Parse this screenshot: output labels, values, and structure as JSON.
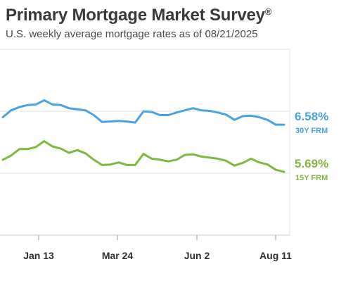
{
  "header": {
    "title": "Primary Mortgage Market Survey",
    "title_mark": "®",
    "subtitle": "U.S. weekly average mortgage rates as of 08/21/2025"
  },
  "colors": {
    "frm30": "#4aa3df",
    "frm15": "#7fb83f",
    "grid": "#e3e3e3",
    "text": "#2f2f2f"
  },
  "chart_data": {
    "type": "line",
    "x_tick_labels": [
      "Jan 13",
      "Mar 24",
      "Jun 2",
      "Aug 11"
    ],
    "ylim": [
      4.5,
      8.0
    ],
    "grid": true,
    "series": [
      {
        "name": "30Y FRM",
        "end_label": "6.58%",
        "values": [
          6.72,
          6.85,
          6.91,
          6.95,
          6.96,
          7.04,
          6.96,
          6.95,
          6.89,
          6.87,
          6.85,
          6.76,
          6.63,
          6.64,
          6.65,
          6.64,
          6.62,
          6.83,
          6.82,
          6.76,
          6.76,
          6.81,
          6.85,
          6.89,
          6.85,
          6.84,
          6.81,
          6.77,
          6.67,
          6.74,
          6.75,
          6.72,
          6.67,
          6.58,
          6.58
        ]
      },
      {
        "name": "15Y FRM",
        "end_label": "5.69%",
        "values": [
          5.92,
          6.0,
          6.12,
          6.12,
          6.16,
          6.27,
          6.17,
          6.13,
          6.05,
          6.1,
          6.04,
          5.92,
          5.82,
          5.83,
          5.87,
          5.82,
          5.82,
          6.03,
          5.94,
          5.92,
          5.89,
          5.92,
          6.01,
          6.02,
          5.98,
          5.96,
          5.94,
          5.9,
          5.81,
          5.86,
          5.94,
          5.87,
          5.83,
          5.73,
          5.69
        ]
      }
    ]
  }
}
